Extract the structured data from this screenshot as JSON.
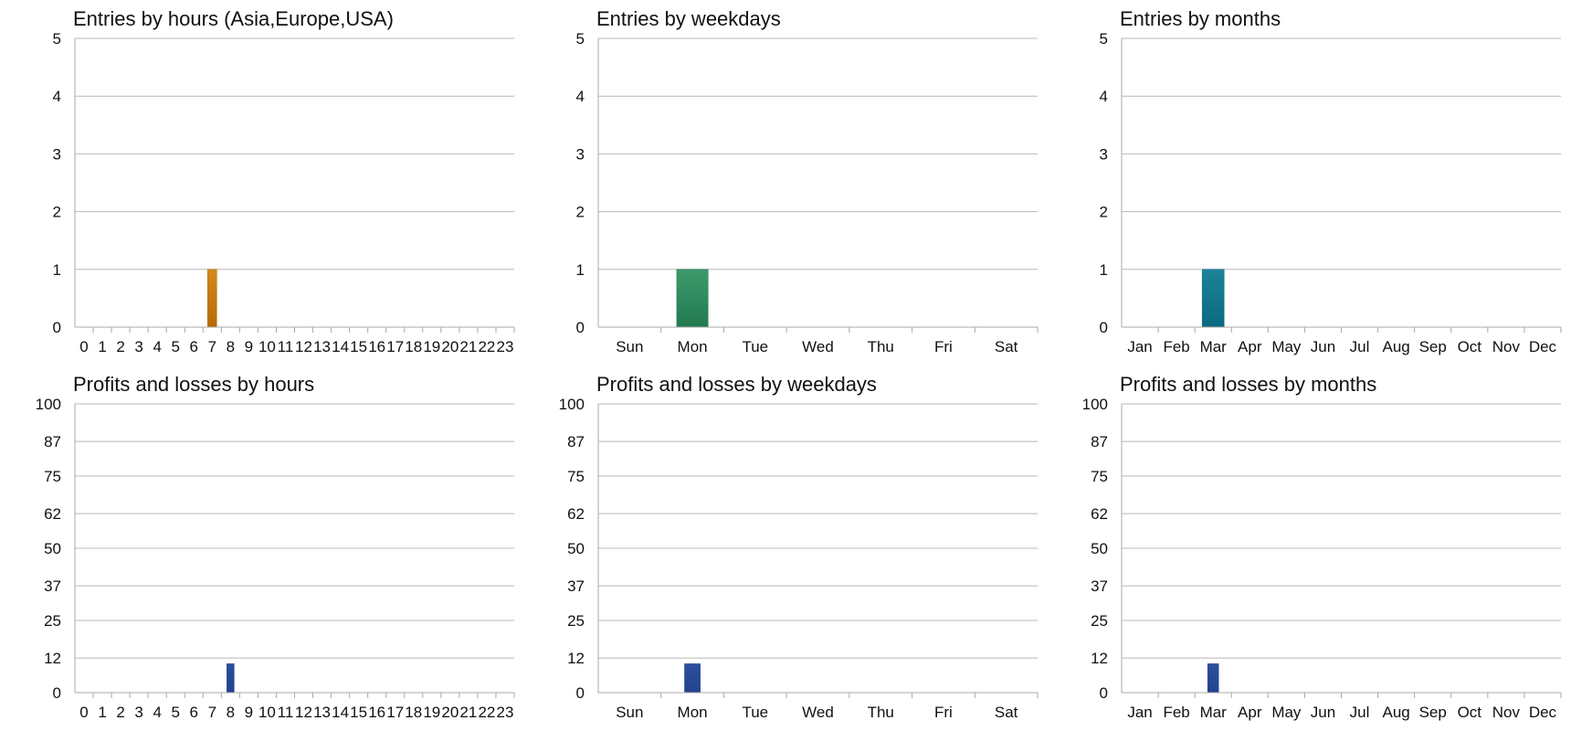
{
  "colors": {
    "grid": "#b8b8b8",
    "axis": "#a8a8a8",
    "text": "#111111"
  },
  "chart_data": [
    {
      "type": "bar",
      "title": "Entries by hours (Asia,Europe,USA)",
      "categories": [
        "0",
        "1",
        "2",
        "3",
        "4",
        "5",
        "6",
        "7",
        "8",
        "9",
        "10",
        "11",
        "12",
        "13",
        "14",
        "15",
        "16",
        "17",
        "18",
        "19",
        "20",
        "21",
        "22",
        "23"
      ],
      "values": [
        0,
        0,
        0,
        0,
        0,
        0,
        0,
        1,
        0,
        0,
        0,
        0,
        0,
        0,
        0,
        0,
        0,
        0,
        0,
        0,
        0,
        0,
        0,
        0
      ],
      "ylim": [
        0,
        5
      ],
      "yticks": [
        "0",
        "1",
        "2",
        "3",
        "4",
        "5"
      ],
      "color_top": "#d4891c",
      "color_bottom": "#b56a06",
      "bar_width_ratio": 0.5,
      "grid": true
    },
    {
      "type": "bar",
      "title": "Entries by weekdays",
      "categories": [
        "Sun",
        "Mon",
        "Tue",
        "Wed",
        "Thu",
        "Fri",
        "Sat"
      ],
      "values": [
        0,
        1,
        0,
        0,
        0,
        0,
        0
      ],
      "ylim": [
        0,
        5
      ],
      "yticks": [
        "0",
        "1",
        "2",
        "3",
        "4",
        "5"
      ],
      "color_top": "#3d9a6c",
      "color_bottom": "#237a50",
      "bar_width_ratio": 0.5,
      "grid": true
    },
    {
      "type": "bar",
      "title": "Entries by months",
      "categories": [
        "Jan",
        "Feb",
        "Mar",
        "Apr",
        "May",
        "Jun",
        "Jul",
        "Aug",
        "Sep",
        "Oct",
        "Nov",
        "Dec"
      ],
      "values": [
        0,
        0,
        1,
        0,
        0,
        0,
        0,
        0,
        0,
        0,
        0,
        0
      ],
      "ylim": [
        0,
        5
      ],
      "yticks": [
        "0",
        "1",
        "2",
        "3",
        "4",
        "5"
      ],
      "color_top": "#1d8399",
      "color_bottom": "#0a6a82",
      "bar_width_ratio": 0.6,
      "grid": true
    },
    {
      "type": "bar",
      "title": "Profits and losses by hours",
      "categories": [
        "0",
        "1",
        "2",
        "3",
        "4",
        "5",
        "6",
        "7",
        "8",
        "9",
        "10",
        "11",
        "12",
        "13",
        "14",
        "15",
        "16",
        "17",
        "18",
        "19",
        "20",
        "21",
        "22",
        "23"
      ],
      "values": [
        0,
        0,
        0,
        0,
        0,
        0,
        0,
        0,
        10,
        0,
        0,
        0,
        0,
        0,
        0,
        0,
        0,
        0,
        0,
        0,
        0,
        0,
        0,
        0
      ],
      "ylim": [
        0,
        100
      ],
      "yticks": [
        "0",
        "12",
        "25",
        "37",
        "50",
        "62",
        "75",
        "87",
        "100"
      ],
      "color_top": "#2e4f9e",
      "color_bottom": "#23428e",
      "bar_width_ratio": 0.4,
      "grid": true
    },
    {
      "type": "bar",
      "title": "Profits and losses by weekdays",
      "categories": [
        "Sun",
        "Mon",
        "Tue",
        "Wed",
        "Thu",
        "Fri",
        "Sat"
      ],
      "values": [
        0,
        10,
        0,
        0,
        0,
        0,
        0
      ],
      "ylim": [
        0,
        100
      ],
      "yticks": [
        "0",
        "12",
        "25",
        "37",
        "50",
        "62",
        "75",
        "87",
        "100"
      ],
      "color_top": "#2e4f9e",
      "color_bottom": "#23428e",
      "bar_width_ratio": 0.25,
      "grid": true
    },
    {
      "type": "bar",
      "title": "Profits and losses by months",
      "categories": [
        "Jan",
        "Feb",
        "Mar",
        "Apr",
        "May",
        "Jun",
        "Jul",
        "Aug",
        "Sep",
        "Oct",
        "Nov",
        "Dec"
      ],
      "values": [
        0,
        0,
        10,
        0,
        0,
        0,
        0,
        0,
        0,
        0,
        0,
        0
      ],
      "ylim": [
        0,
        100
      ],
      "yticks": [
        "0",
        "12",
        "25",
        "37",
        "50",
        "62",
        "75",
        "87",
        "100"
      ],
      "color_top": "#2e4f9e",
      "color_bottom": "#23428e",
      "bar_width_ratio": 0.3,
      "grid": true
    }
  ]
}
